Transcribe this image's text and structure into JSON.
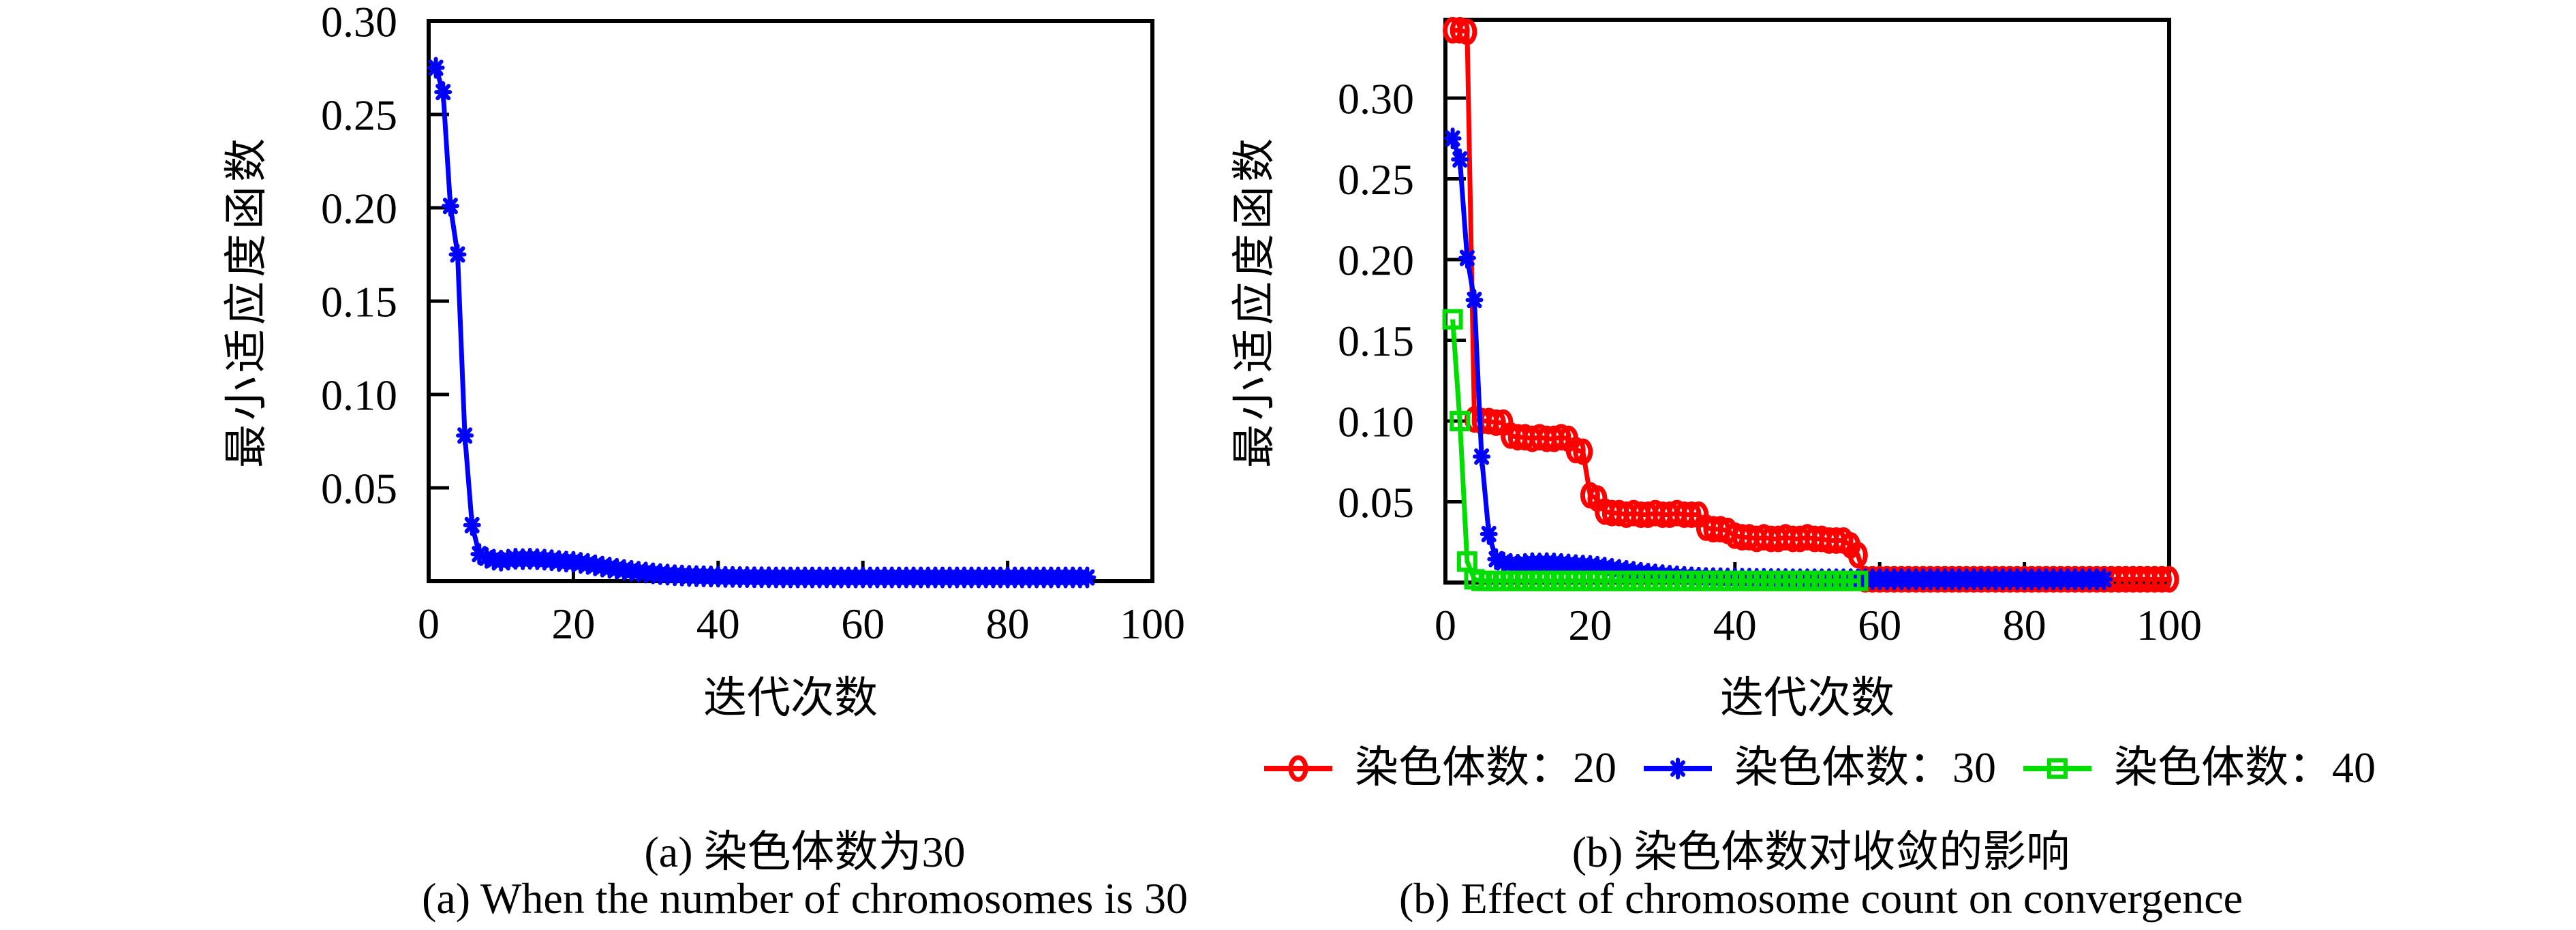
{
  "figure": {
    "background": "#ffffff",
    "panels": [
      {
        "label": "a",
        "caption_zh": "(a) 染色体数为30",
        "caption_en": "(a) When the number of chromosomes is 30"
      },
      {
        "label": "b",
        "caption_zh": "(b) 染色体数对收敛的影响",
        "caption_en": "(b) Effect of chromosome count on convergence"
      }
    ]
  },
  "chart_data": [
    {
      "type": "line",
      "title": "",
      "xlabel": "迭代次数",
      "ylabel": "最小适应度函数",
      "xlim": [
        0,
        100
      ],
      "ylim": [
        0,
        0.3
      ],
      "xticks": [
        0,
        20,
        40,
        60,
        80,
        100
      ],
      "ytick_values": [
        0.05,
        0.1,
        0.15,
        0.2,
        0.25,
        0.3
      ],
      "yticks": [
        "0.05",
        "0.10",
        "0.15",
        "0.20",
        "0.25",
        "0.30"
      ],
      "grid": false,
      "legend_position": "none",
      "series": [
        {
          "name": "染色体数：30",
          "color": "#0000ff",
          "marker": "asterisk",
          "x_start": 1,
          "values": [
            0.275,
            0.262,
            0.201,
            0.175,
            0.078,
            0.03,
            0.0145,
            0.0125,
            0.0115,
            0.011,
            0.0115,
            0.012,
            0.0118,
            0.012,
            0.0118,
            0.0115,
            0.0112,
            0.0108,
            0.0105,
            0.0103,
            0.0098,
            0.0092,
            0.0085,
            0.0078,
            0.0072,
            0.0066,
            0.006,
            0.0055,
            0.005,
            0.0046,
            0.0042,
            0.0038,
            0.0035,
            0.0032,
            0.003,
            0.0028,
            0.0027,
            0.0026,
            0.0025,
            0.0024,
            0.0023,
            0.0023,
            0.0022,
            0.0022,
            0.0021,
            0.0021,
            0.0021,
            0.002,
            0.002,
            0.002,
            0.002,
            0.002,
            0.002,
            0.002,
            0.002,
            0.002,
            0.002,
            0.002,
            0.002,
            0.002,
            0.002,
            0.002,
            0.002,
            0.002,
            0.002,
            0.002,
            0.002,
            0.002,
            0.002,
            0.002,
            0.002,
            0.002,
            0.002,
            0.002,
            0.002,
            0.002,
            0.002,
            0.002,
            0.002,
            0.002,
            0.002,
            0.002,
            0.002,
            0.002,
            0.002,
            0.002,
            0.002,
            0.002,
            0.002,
            0.002,
            0.002
          ]
        }
      ]
    },
    {
      "type": "line",
      "title": "",
      "xlabel": "迭代次数",
      "ylabel": "最小适应度函数",
      "xlim": [
        0,
        100
      ],
      "ylim": [
        0,
        0.3485
      ],
      "xticks": [
        0,
        20,
        40,
        60,
        80,
        100
      ],
      "ytick_values": [
        0.05,
        0.1,
        0.15,
        0.2,
        0.25,
        0.3
      ],
      "yticks": [
        "0.05",
        "0.10",
        "0.15",
        "0.20",
        "0.25",
        "0.30"
      ],
      "grid": false,
      "legend_position": "below",
      "series": [
        {
          "name": "染色体数：20",
          "color": "#ff0000",
          "marker": "circle",
          "x_start": 1,
          "values": [
            0.342,
            0.342,
            0.341,
            0.101,
            0.1,
            0.1,
            0.099,
            0.099,
            0.091,
            0.09,
            0.09,
            0.089,
            0.09,
            0.089,
            0.089,
            0.09,
            0.089,
            0.082,
            0.081,
            0.054,
            0.052,
            0.044,
            0.043,
            0.043,
            0.042,
            0.043,
            0.042,
            0.042,
            0.043,
            0.042,
            0.042,
            0.043,
            0.042,
            0.042,
            0.042,
            0.034,
            0.033,
            0.033,
            0.032,
            0.029,
            0.028,
            0.028,
            0.027,
            0.028,
            0.027,
            0.027,
            0.028,
            0.027,
            0.027,
            0.028,
            0.027,
            0.027,
            0.026,
            0.026,
            0.026,
            0.023,
            0.017,
            0.002,
            0.002,
            0.002,
            0.002,
            0.002,
            0.002,
            0.002,
            0.002,
            0.002,
            0.002,
            0.002,
            0.002,
            0.002,
            0.002,
            0.002,
            0.002,
            0.002,
            0.002,
            0.002,
            0.002,
            0.002,
            0.002,
            0.002,
            0.002,
            0.002,
            0.002,
            0.002,
            0.002,
            0.002,
            0.002,
            0.002,
            0.002,
            0.002,
            0.002,
            0.002,
            0.002,
            0.002,
            0.002,
            0.002,
            0.002,
            0.002,
            0.002,
            0.002
          ]
        },
        {
          "name": "染色体数：30",
          "color": "#0000ff",
          "marker": "asterisk",
          "x_start": 1,
          "values": [
            0.275,
            0.262,
            0.201,
            0.175,
            0.078,
            0.03,
            0.0145,
            0.0125,
            0.0115,
            0.011,
            0.0115,
            0.012,
            0.0118,
            0.012,
            0.0118,
            0.0115,
            0.0112,
            0.0108,
            0.0105,
            0.0103,
            0.0098,
            0.0092,
            0.0085,
            0.0078,
            0.0072,
            0.0066,
            0.006,
            0.0055,
            0.005,
            0.0046,
            0.0042,
            0.0038,
            0.0035,
            0.0032,
            0.003,
            0.0028,
            0.0027,
            0.0026,
            0.0025,
            0.0024,
            0.0023,
            0.0023,
            0.0022,
            0.0022,
            0.0021,
            0.0021,
            0.0021,
            0.002,
            0.002,
            0.002,
            0.002,
            0.002,
            0.002,
            0.002,
            0.002,
            0.002,
            0.002,
            0.002,
            0.002,
            0.002,
            0.002,
            0.002,
            0.002,
            0.002,
            0.002,
            0.002,
            0.002,
            0.002,
            0.002,
            0.002,
            0.002,
            0.002,
            0.002,
            0.002,
            0.002,
            0.002,
            0.002,
            0.002,
            0.002,
            0.002,
            0.002,
            0.002,
            0.002,
            0.002,
            0.002,
            0.002,
            0.002,
            0.002,
            0.002,
            0.002,
            0.002
          ]
        },
        {
          "name": "染色体数：40",
          "color": "#00dd00",
          "marker": "square",
          "x_start": 1,
          "values": [
            0.163,
            0.1,
            0.013,
            0.002,
            0.001,
            0.001,
            0.001,
            0.001,
            0.001,
            0.001,
            0.001,
            0.001,
            0.001,
            0.001,
            0.001,
            0.001,
            0.001,
            0.001,
            0.001,
            0.001,
            0.001,
            0.001,
            0.001,
            0.001,
            0.001,
            0.001,
            0.001,
            0.001,
            0.001,
            0.001,
            0.001,
            0.001,
            0.001,
            0.001,
            0.001,
            0.001,
            0.001,
            0.001,
            0.001,
            0.001,
            0.001,
            0.001,
            0.001,
            0.001,
            0.001,
            0.001,
            0.001,
            0.001,
            0.001,
            0.001,
            0.001,
            0.001,
            0.001,
            0.001,
            0.001,
            0.001,
            0.001
          ]
        }
      ]
    }
  ]
}
